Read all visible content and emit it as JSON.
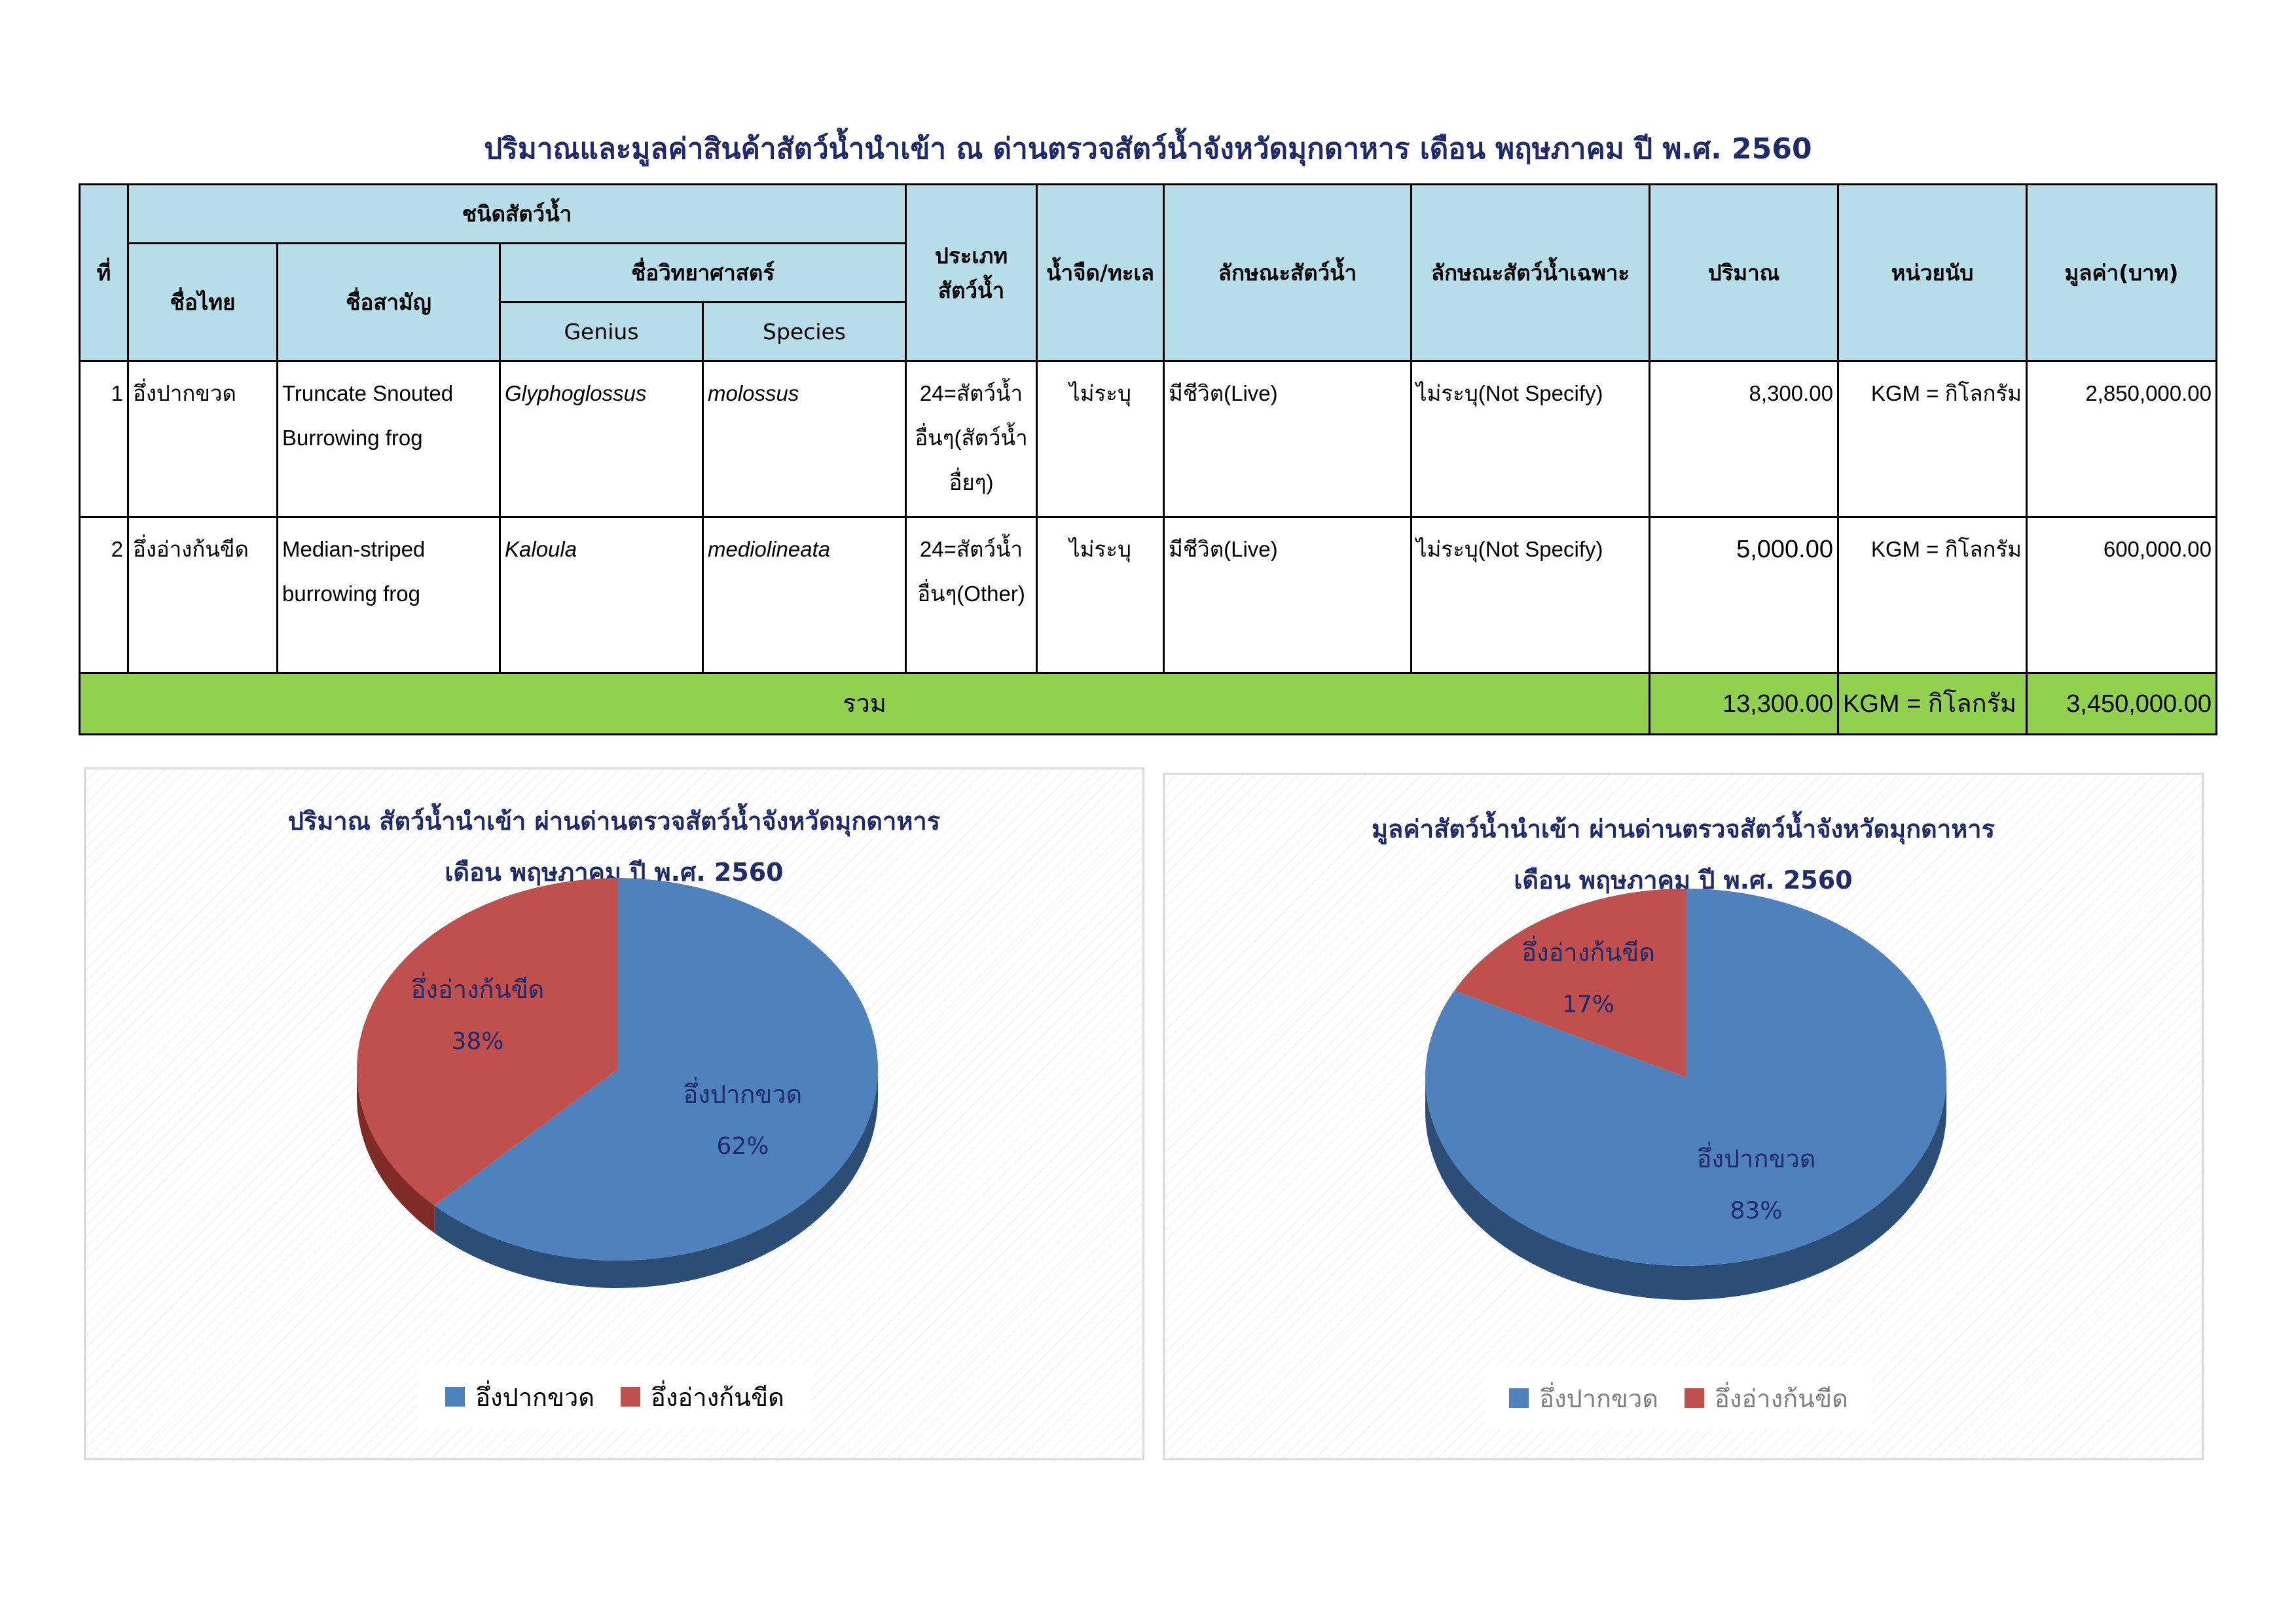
{
  "report": {
    "title": "ปริมาณและมูลค่าสินค้าสัตว์น้ำนำเข้า ณ ด่านตรวจสัตว์น้ำจังหวัดมุกดาหาร เดือน พฤษภาคม ปี พ.ศ. 2560"
  },
  "table": {
    "headers": {
      "no": "ที่",
      "species_group": "ชนิดสัตว์น้ำ",
      "thai_name": "ชื่อไทย",
      "common_name": "ชื่อสามัญ",
      "sci_name": "ชื่อวิทยาศาสตร์",
      "genus": "Genius",
      "species": "Species",
      "type_line1": "ประเภท",
      "type_line2": "สัตว์น้ำ",
      "water": "น้ำจืด/ทะเล",
      "character": "ลักษณะสัตว์น้ำ",
      "specific_character": "ลักษณะสัตว์น้ำเฉพาะ",
      "quantity": "ปริมาณ",
      "unit": "หน่วยนับ",
      "value": "มูลค่า(บาท)"
    },
    "rows": [
      {
        "no": "1",
        "thai_name": "อึ่งปากขวด",
        "common_name_l1": "Truncate Snouted",
        "common_name_l2": "Burrowing frog",
        "genus": "Glyphoglossus",
        "species": "molossus",
        "type_l1": "24=สัตว์น้ำ",
        "type_l2": "อื่นๆ(สัตว์น้ำ",
        "type_l3": "อื่ยๆ)",
        "water": "ไม่ระบุ",
        "character": "มีชีวิต(Live)",
        "specific_character": "ไม่ระบุ(Not Specify)",
        "quantity": "8,300.00",
        "unit": "KGM = กิโลกรัม",
        "value": "2,850,000.00"
      },
      {
        "no": "2",
        "thai_name": "อึ่งอ่างก้นขีด",
        "common_name_l1": "Median-striped",
        "common_name_l2": "burrowing frog",
        "genus": "Kaloula",
        "species": "mediolineata",
        "type_l1": "24=สัตว์น้ำ",
        "type_l2": "อื่นๆ(Other)",
        "type_l3": "",
        "water": "ไม่ระบุ",
        "character": "มีชีวิต(Live)",
        "specific_character": "ไม่ระบุ(Not Specify)",
        "quantity": "5,000.00",
        "unit": "KGM = กิโลกรัม",
        "value": "600,000.00"
      }
    ],
    "total": {
      "label": "รวม",
      "quantity": "13,300.00",
      "unit": "KGM = กิโลกรัม",
      "value": "3,450,000.00"
    }
  },
  "colors": {
    "header_bg": "#b7dde8",
    "total_bg": "#92d050",
    "title_text": "#1f2a6b",
    "slice_blue": "#4f81bd",
    "slice_red": "#c0504d"
  },
  "chart_data": [
    {
      "type": "pie",
      "title_line1": "ปริมาณ สัตว์น้ำนำเข้า ผ่านด่านตรวจสัตว์น้ำจังหวัดมุกดาหาร",
      "title_line2": "เดือน พฤษภาคม ปี พ.ศ. 2560",
      "categories": [
        "อึ่งปากขวด",
        "อึ่งอ่างก้นขีด"
      ],
      "values": [
        8300,
        5000
      ],
      "percent_labels": [
        "62%",
        "38%"
      ],
      "legend_position": "bottom"
    },
    {
      "type": "pie",
      "title_line1": "มูลค่าสัตว์น้ำนำเข้า ผ่านด่านตรวจสัตว์น้ำจังหวัดมุกดาหาร",
      "title_line2": "เดือน พฤษภาคม ปี พ.ศ. 2560",
      "categories": [
        "อึ่งปากขวด",
        "อึ่งอ่างก้นขีด"
      ],
      "values": [
        2850000,
        600000
      ],
      "percent_labels": [
        "83%",
        "17%"
      ],
      "legend_position": "bottom"
    }
  ]
}
